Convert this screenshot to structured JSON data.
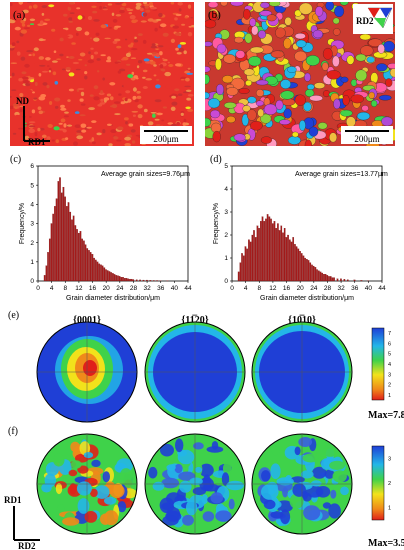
{
  "panel_labels": {
    "a": "(a)",
    "b": "(b)",
    "c": "(c)",
    "d": "(d)",
    "e": "(e)",
    "f": "(f)"
  },
  "maps": {
    "scale_a": "200μm",
    "scale_b": "200μm",
    "axis_nd": "ND",
    "axis_rd1": "RD1",
    "legend_label": "RD2"
  },
  "chart_data": [
    {
      "type": "bar",
      "id": "c",
      "annotation": "Average grain sizes=9.76μm",
      "xlabel": "Grain diameter distribution/μm",
      "ylabel": "Frequency/%",
      "xlim": [
        0,
        44
      ],
      "ylim": [
        0,
        6
      ],
      "xticks": [
        "0",
        "4",
        "8",
        "12",
        "16",
        "20",
        "24",
        "28",
        "32",
        "36",
        "40",
        "44"
      ],
      "yticks": [
        "0",
        "1",
        "2",
        "3",
        "4",
        "5",
        "6"
      ],
      "bin_width": 0.5,
      "x": [
        2.0,
        2.5,
        3.0,
        3.5,
        4.0,
        4.5,
        5.0,
        5.5,
        6.0,
        6.5,
        7.0,
        7.5,
        8.0,
        8.5,
        9.0,
        9.5,
        10.0,
        10.5,
        11.0,
        11.5,
        12.0,
        12.5,
        13.0,
        13.5,
        14.0,
        14.5,
        15.0,
        15.5,
        16.0,
        16.5,
        17.0,
        17.5,
        18.0,
        18.5,
        19.0,
        19.5,
        20.0,
        20.5,
        21.0,
        21.5,
        22.0,
        22.5,
        23.0,
        23.5,
        24.0,
        24.5,
        25.0,
        25.5,
        26.0,
        26.5,
        27.0,
        27.5,
        28.0,
        29.0,
        30.0,
        31.0,
        32.0,
        33.0,
        34.0,
        35.0,
        36.0,
        38.0
      ],
      "values": [
        0.3,
        0.8,
        1.5,
        2.2,
        3.0,
        3.5,
        3.9,
        4.3,
        5.2,
        5.4,
        4.6,
        4.9,
        4.4,
        3.9,
        4.1,
        3.6,
        3.2,
        3.4,
        2.9,
        2.7,
        2.5,
        2.6,
        2.2,
        2.1,
        1.9,
        1.7,
        1.6,
        1.5,
        1.4,
        1.2,
        1.1,
        1.0,
        0.9,
        0.85,
        0.8,
        0.7,
        0.6,
        0.55,
        0.5,
        0.45,
        0.4,
        0.35,
        0.3,
        0.28,
        0.25,
        0.2,
        0.2,
        0.15,
        0.15,
        0.12,
        0.1,
        0.1,
        0.08,
        0.07,
        0.06,
        0.05,
        0.05,
        0.04,
        0.03,
        0.03,
        0.02,
        0.02
      ],
      "color": "#a61c1c"
    },
    {
      "type": "bar",
      "id": "d",
      "annotation": "Average grain sizes=13.77μm",
      "xlabel": "Grain diameter distribution/μm",
      "ylabel": "Frequency/%",
      "xlim": [
        0,
        44
      ],
      "ylim": [
        0,
        5
      ],
      "xticks": [
        "0",
        "4",
        "8",
        "12",
        "16",
        "20",
        "24",
        "28",
        "32",
        "36",
        "40",
        "44"
      ],
      "yticks": [
        "0",
        "1",
        "2",
        "3",
        "4",
        "5"
      ],
      "bin_width": 0.5,
      "x": [
        2.0,
        2.5,
        3.0,
        3.5,
        4.0,
        4.5,
        5.0,
        5.5,
        6.0,
        6.5,
        7.0,
        7.5,
        8.0,
        8.5,
        9.0,
        9.5,
        10.0,
        10.5,
        11.0,
        11.5,
        12.0,
        12.5,
        13.0,
        13.5,
        14.0,
        14.5,
        15.0,
        15.5,
        16.0,
        16.5,
        17.0,
        17.5,
        18.0,
        18.5,
        19.0,
        19.5,
        20.0,
        20.5,
        21.0,
        21.5,
        22.0,
        22.5,
        23.0,
        23.5,
        24.0,
        24.5,
        25.0,
        25.5,
        26.0,
        26.5,
        27.0,
        27.5,
        28.0,
        28.5,
        29.0,
        29.5,
        30.0,
        31.0,
        32.0,
        33.0,
        34.0,
        36.0,
        38.0,
        40.0
      ],
      "values": [
        0.4,
        0.8,
        1.2,
        1.1,
        1.5,
        1.4,
        1.8,
        1.7,
        2.0,
        2.2,
        1.9,
        2.4,
        2.3,
        2.6,
        2.8,
        2.6,
        2.7,
        2.9,
        2.8,
        2.7,
        2.5,
        2.6,
        2.3,
        2.5,
        2.2,
        2.4,
        2.1,
        2.3,
        1.9,
        2.0,
        1.8,
        1.7,
        1.9,
        1.6,
        1.5,
        1.4,
        1.3,
        1.2,
        1.1,
        1.0,
        0.95,
        0.9,
        0.8,
        0.7,
        0.65,
        0.6,
        0.5,
        0.45,
        0.4,
        0.35,
        0.3,
        0.3,
        0.25,
        0.2,
        0.2,
        0.15,
        0.15,
        0.1,
        0.1,
        0.08,
        0.06,
        0.05,
        0.03,
        0.02
      ],
      "color": "#a61c1c"
    }
  ],
  "pole_figures": {
    "headers": [
      "{0001}",
      "{11̅20}",
      "{10̅10}"
    ],
    "max_e": "Max=7.8",
    "max_f": "Max=3.5",
    "colorbar_e_ticks": [
      "7",
      "6",
      "5",
      "4",
      "3",
      "2",
      "1"
    ],
    "colorbar_f_ticks": [
      "3",
      "2",
      "1"
    ],
    "axis_rd1": "RD1",
    "axis_rd2": "RD2"
  },
  "colors": {
    "histogram": "#a61c1c",
    "ebsd_dominant": "#e8322b",
    "pole_low": "#1f3fd6",
    "pole_high": "#e0201a"
  }
}
